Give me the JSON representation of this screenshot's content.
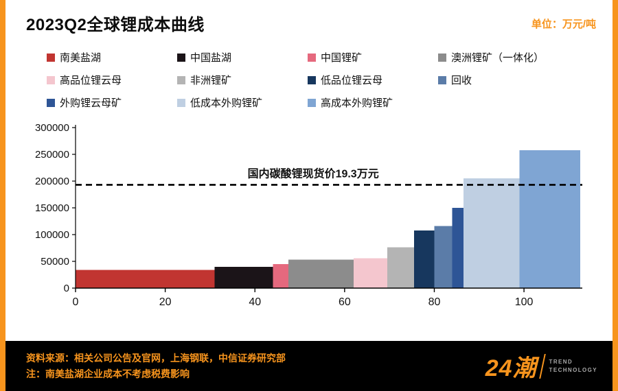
{
  "colors": {
    "accent": "#F7941D",
    "footer_bg": "#000000",
    "axis": "#000000",
    "text": "#111111",
    "logo_subtitle": "#A8A8A8"
  },
  "header": {
    "title": "2023Q2全球锂成本曲线",
    "unit": "单位：万元/吨"
  },
  "chart_data": {
    "type": "bar",
    "title": "2023Q2全球锂成本曲线",
    "xlabel": "",
    "ylabel": "",
    "xlim": [
      0,
      113
    ],
    "ylim": [
      0,
      300000
    ],
    "xticks": [
      0,
      20,
      40,
      60,
      80,
      100
    ],
    "yticks": [
      0,
      50000,
      100000,
      150000,
      200000,
      250000,
      300000
    ],
    "grid": false,
    "legend_position": "top",
    "reference_line": {
      "value": 193000,
      "label": "国内碳酸锂现货价19.3万元"
    },
    "series": [
      {
        "name": "南美盐湖",
        "color": "#C13531",
        "x_start": 0,
        "x_end": 31,
        "value": 34000
      },
      {
        "name": "中国盐湖",
        "color": "#1B1418",
        "x_start": 31,
        "x_end": 44,
        "value": 40000
      },
      {
        "name": "中国锂矿",
        "color": "#E5697E",
        "x_start": 44,
        "x_end": 47.5,
        "value": 45000
      },
      {
        "name": "澳洲锂矿（一体化）",
        "color": "#8C8C8C",
        "x_start": 47.5,
        "x_end": 62,
        "value": 53000
      },
      {
        "name": "高品位锂云母",
        "color": "#F4C6CE",
        "x_start": 62,
        "x_end": 69.5,
        "value": 56000
      },
      {
        "name": "非洲锂矿",
        "color": "#B4B4B4",
        "x_start": 69.5,
        "x_end": 75.5,
        "value": 76000
      },
      {
        "name": "低品位锂云母",
        "color": "#17375E",
        "x_start": 75.5,
        "x_end": 80,
        "value": 108000
      },
      {
        "name": "回收",
        "color": "#5B7CA8",
        "x_start": 80,
        "x_end": 84,
        "value": 116000
      },
      {
        "name": "外购锂云母矿",
        "color": "#2E5596",
        "x_start": 84,
        "x_end": 86.5,
        "value": 150000
      },
      {
        "name": "低成本外购锂矿",
        "color": "#BFCFE2",
        "x_start": 86.5,
        "x_end": 99,
        "value": 205000
      },
      {
        "name": "高成本外购锂矿",
        "color": "#7FA5D3",
        "x_start": 99,
        "x_end": 112.5,
        "value": 258000
      }
    ]
  },
  "footer": {
    "source": "资料来源：相关公司公告及官网，上海钢联，中信证券研究部",
    "note": "注：南美盐湖企业成本不考虑税费影响",
    "logo_text": "24潮",
    "logo_sub1": "TREND",
    "logo_sub2": "TECHNOLOGY"
  }
}
